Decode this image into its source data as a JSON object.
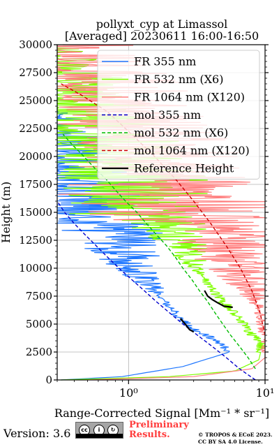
{
  "chart_data": {
    "type": "line",
    "title": "pollyxt_cyp at Limassol",
    "subtitle": "[Averaged] 20230611 16:00-16:50",
    "xlabel": "Range-Corrected Signal [Mm⁻¹ * sr⁻¹]",
    "ylabel": "Height (m)",
    "xscale": "log",
    "xlim": [
      0.3,
      10
    ],
    "ylim": [
      0,
      30000
    ],
    "x_ticks": [
      1,
      10
    ],
    "x_tick_labels": [
      "10⁰",
      "10¹"
    ],
    "y_ticks": [
      0,
      2500,
      5000,
      7500,
      10000,
      12500,
      15000,
      17500,
      20000,
      22500,
      25000,
      27500,
      30000
    ],
    "y_tick_labels": [
      "0",
      "2500",
      "5000",
      "7500",
      "10000",
      "12500",
      "15000",
      "17500",
      "20000",
      "22500",
      "25000",
      "27500",
      "30000"
    ],
    "grid": true,
    "legend_position": "top-right",
    "series": [
      {
        "name": "FR 355 nm",
        "color": "#1f77ff",
        "style": "solid",
        "points": [
          [
            0.32,
            0
          ],
          [
            0.9,
            300
          ],
          [
            2.5,
            1200
          ],
          [
            5.5,
            2500
          ],
          [
            4.5,
            3500
          ],
          [
            3,
            4500
          ],
          [
            2.4,
            5500
          ],
          [
            2.0,
            6500
          ],
          [
            1.7,
            7500
          ],
          [
            1.45,
            8500
          ],
          [
            1.25,
            9500
          ],
          [
            1.1,
            10500
          ],
          [
            0.95,
            11500
          ],
          [
            0.82,
            12500
          ],
          [
            0.7,
            13500
          ],
          [
            0.6,
            14500
          ],
          [
            0.5,
            16000
          ],
          [
            0.42,
            17500
          ]
        ],
        "noise_from_height": 7000
      },
      {
        "name": "FR 532 nm (X6)",
        "color": "#7fff00",
        "style": "solid",
        "points": [
          [
            0.32,
            0
          ],
          [
            2,
            300
          ],
          [
            6,
            800
          ],
          [
            9,
            1800
          ],
          [
            9.5,
            3000
          ],
          [
            7.5,
            4500
          ],
          [
            6,
            6000
          ],
          [
            4.5,
            7500
          ],
          [
            3.6,
            9000
          ],
          [
            3.0,
            10500
          ],
          [
            2.5,
            12000
          ],
          [
            2.1,
            13500
          ],
          [
            1.7,
            15000
          ],
          [
            1.4,
            16500
          ],
          [
            1.15,
            18000
          ]
        ],
        "noise_from_height": 9000
      },
      {
        "name": "FR 1064 nm (X120)",
        "color": "#ff7f7f",
        "style": "solid",
        "points": [
          [
            0.5,
            0
          ],
          [
            3,
            300
          ],
          [
            8,
            1000
          ],
          [
            10,
            2000
          ],
          [
            10,
            3500
          ],
          [
            9.5,
            5000
          ],
          [
            9,
            6500
          ],
          [
            8,
            8000
          ],
          [
            7,
            9500
          ],
          [
            6,
            11000
          ],
          [
            5,
            12500
          ],
          [
            4.2,
            14000
          ],
          [
            3.5,
            15500
          ],
          [
            2.9,
            17000
          ],
          [
            2.4,
            18500
          ],
          [
            2.0,
            20000
          ]
        ],
        "noise_from_height": 6000
      },
      {
        "name": "mol 355 nm",
        "color": "#0000cc",
        "style": "dashed",
        "points": [
          [
            8.5,
            0
          ],
          [
            6.5,
            1000
          ],
          [
            5.2,
            2000
          ],
          [
            4.1,
            3000
          ],
          [
            3.2,
            4000
          ],
          [
            2.5,
            5000
          ],
          [
            2.0,
            6000
          ],
          [
            1.6,
            7000
          ],
          [
            1.3,
            8000
          ],
          [
            1.05,
            9000
          ],
          [
            0.85,
            10000
          ],
          [
            0.7,
            11000
          ],
          [
            0.58,
            12000
          ],
          [
            0.48,
            13000
          ],
          [
            0.4,
            14000
          ],
          [
            0.34,
            15000
          ],
          [
            0.3,
            16000
          ]
        ]
      },
      {
        "name": "mol 532 nm (X6)",
        "color": "#00bb00",
        "style": "dashed",
        "points": [
          [
            8.5,
            1000
          ],
          [
            7.5,
            2000
          ],
          [
            6.5,
            3000
          ],
          [
            5.6,
            4000
          ],
          [
            4.9,
            5000
          ],
          [
            4.3,
            6000
          ],
          [
            3.8,
            7000
          ],
          [
            3.3,
            8000
          ],
          [
            2.9,
            9000
          ],
          [
            2.5,
            10000
          ],
          [
            2.2,
            11000
          ],
          [
            1.9,
            12000
          ],
          [
            1.6,
            13000
          ],
          [
            1.35,
            14000
          ],
          [
            1.15,
            15000
          ],
          [
            0.95,
            16000
          ],
          [
            0.8,
            17000
          ],
          [
            0.68,
            18000
          ],
          [
            0.56,
            19000
          ],
          [
            0.47,
            20000
          ],
          [
            0.39,
            21000
          ],
          [
            0.33,
            22000
          ]
        ]
      },
      {
        "name": "mol 1064 nm (X120)",
        "color": "#cc0000",
        "style": "dashed",
        "points": [
          [
            10,
            4000
          ],
          [
            9.2,
            6000
          ],
          [
            8,
            8000
          ],
          [
            6.6,
            10000
          ],
          [
            5.2,
            12000
          ],
          [
            4.0,
            14000
          ],
          [
            3.0,
            16000
          ],
          [
            2.2,
            18000
          ],
          [
            1.55,
            20000
          ],
          [
            1.05,
            22000
          ],
          [
            0.7,
            24000
          ],
          [
            0.45,
            25500
          ],
          [
            0.32,
            26500
          ]
        ]
      },
      {
        "name": "Reference Height",
        "color": "#000000",
        "style": "solid",
        "segments": [
          [
            [
              2.4,
              5500
            ],
            [
              2.6,
              5000
            ],
            [
              2.8,
              4500
            ],
            [
              3.0,
              4300
            ]
          ],
          [
            [
              3.6,
              8000
            ],
            [
              3.8,
              7500
            ],
            [
              4.1,
              7200
            ],
            [
              4.5,
              6900
            ],
            [
              5.0,
              6600
            ],
            [
              5.8,
              6500
            ]
          ]
        ]
      }
    ]
  },
  "footer": {
    "version": "Version: 3.6",
    "license_badge_icon": "cc-by-sa-badge",
    "preliminary_line1": "Preliminary",
    "preliminary_line2": "Results.",
    "copyright_line1": "© TROPOS & ECoE 2023.",
    "copyright_line2": "CC BY SA 4.0 License."
  },
  "colors": {
    "preliminary": "#ff3b3b",
    "grid": "#b0b0b0"
  }
}
